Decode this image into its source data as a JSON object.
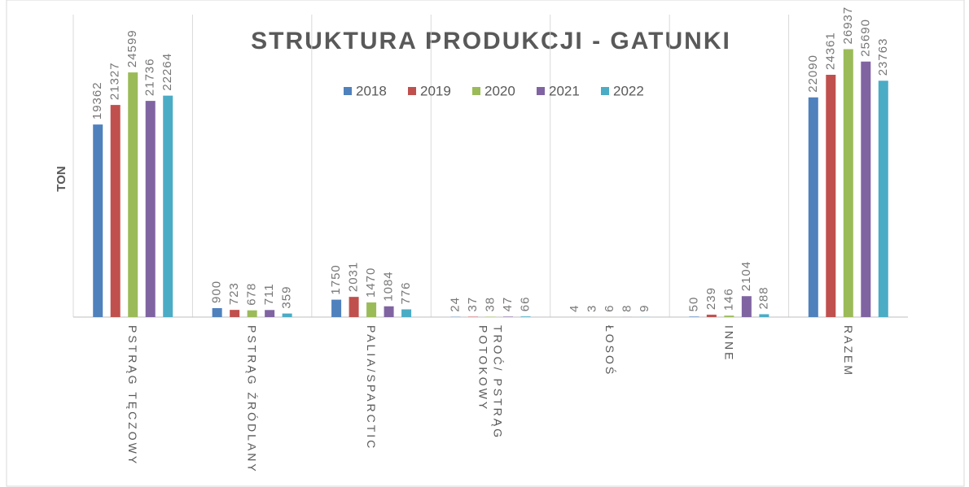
{
  "chart_data": {
    "type": "bar",
    "title": "STRUKTURA  PRODUKCJI  - GATUNKI",
    "y_label": "TON",
    "categories": [
      "PSTRĄG TĘCZOWY",
      "PSTRĄG ŹRÓDLANY",
      "PALIA/SPARCTIC",
      "TROĆ/ PSTRĄG POTOKOWY",
      "ŁOSOŚ",
      "INNE",
      "RAZEM"
    ],
    "series": [
      {
        "name": "2018",
        "color": "#4f81bd",
        "values": [
          19362,
          900,
          1750,
          24,
          4,
          50,
          22090
        ]
      },
      {
        "name": "2019",
        "color": "#c0504d",
        "values": [
          21327,
          723,
          2031,
          37,
          3,
          239,
          24361
        ]
      },
      {
        "name": "2020",
        "color": "#9bbb59",
        "values": [
          24599,
          678,
          1470,
          38,
          6,
          146,
          26937
        ]
      },
      {
        "name": "2021",
        "color": "#8064a2",
        "values": [
          21736,
          711,
          1084,
          47,
          8,
          2104,
          25690
        ]
      },
      {
        "name": "2022",
        "color": "#4bacc6",
        "values": [
          22264,
          359,
          776,
          66,
          9,
          288,
          23763
        ]
      }
    ],
    "ylim": [
      0,
      30000
    ],
    "legend": "top"
  }
}
